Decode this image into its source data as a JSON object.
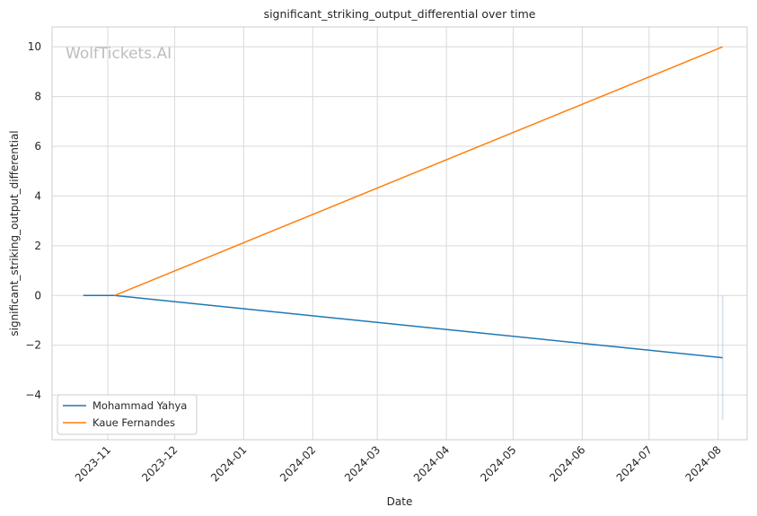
{
  "watermark": "WolfTickets.AI",
  "chart_data": {
    "type": "line",
    "title": "significant_striking_output_differential over time",
    "xlabel": "Date",
    "ylabel": "significant_striking_output_differential",
    "x_ticks": [
      "2023-11",
      "2023-12",
      "2024-01",
      "2024-02",
      "2024-03",
      "2024-04",
      "2024-05",
      "2024-06",
      "2024-07",
      "2024-08"
    ],
    "y_ticks": [
      -4,
      -2,
      0,
      2,
      4,
      6,
      8,
      10
    ],
    "xlim": [
      "2023-10-07",
      "2024-08-14"
    ],
    "ylim": [
      -5.8,
      10.8
    ],
    "grid": true,
    "legend_position": "lower-left",
    "series": [
      {
        "name": "Mohammad Yahya",
        "color": "#1f77b4",
        "points": [
          {
            "x": "2023-10-21",
            "y": 0.0
          },
          {
            "x": "2023-11-04",
            "y": 0.0
          },
          {
            "x": "2024-08-03",
            "y": -2.5
          }
        ]
      },
      {
        "name": "Kaue Fernandes",
        "color": "#ff7f0e",
        "points": [
          {
            "x": "2023-11-04",
            "y": 0.0
          },
          {
            "x": "2024-08-03",
            "y": 10.0
          }
        ]
      }
    ],
    "band": {
      "x": "2024-08-03",
      "y_range": [
        -5.0,
        0.0
      ],
      "color": "#aec7e8"
    }
  }
}
